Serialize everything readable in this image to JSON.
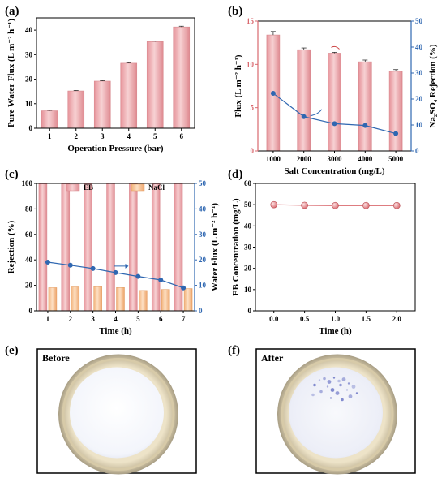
{
  "chart_data": [
    {
      "id": "a",
      "panel_label": "(a)",
      "type": "bar",
      "categories": [
        "1",
        "2",
        "3",
        "4",
        "5",
        "6"
      ],
      "values": [
        7.1,
        15.2,
        19.2,
        26.5,
        35.3,
        41.3
      ],
      "errors": [
        0.2,
        0.2,
        0.2,
        0.2,
        0.2,
        0.3
      ],
      "xlabel": "Operation Pressure (bar)",
      "ylabel": "Pure Water Flux (L m⁻² h⁻¹)",
      "ylim": [
        0,
        45
      ],
      "yticks": [
        0,
        10,
        20,
        30,
        40
      ],
      "bar_color": "#e8a0a5"
    },
    {
      "id": "b",
      "panel_label": "(b)",
      "type": "bar+line",
      "categories": [
        "1000",
        "2000",
        "3000",
        "4000",
        "5000"
      ],
      "series": [
        {
          "values": [
            13.4,
            11.7,
            11.3,
            10.3,
            9.2
          ],
          "errors": [
            0.4,
            0.2,
            0.1,
            0.2,
            0.2
          ],
          "axis": "left",
          "kind": "bar",
          "color": "#e8a0a5"
        },
        {
          "values": [
            22.2,
            13.2,
            10.5,
            9.8,
            6.7
          ],
          "axis": "right",
          "kind": "line",
          "color": "#2f67b1"
        }
      ],
      "xlabel": "Salt Concentration (mg/L)",
      "ylabel_left": "Flux (L m⁻² h⁻¹)",
      "ylabel_right": "Na₂SO₄ Rejection (%)",
      "ylim_left": [
        0,
        15
      ],
      "yticks_left": [
        0,
        5,
        10,
        15
      ],
      "ylim_right": [
        0,
        50
      ],
      "yticks_right": [
        0,
        10,
        20,
        30,
        40,
        50
      ]
    },
    {
      "id": "c",
      "panel_label": "(c)",
      "type": "grouped-bar+line",
      "categories": [
        "1",
        "2",
        "3",
        "4",
        "5",
        "6",
        "7"
      ],
      "series": [
        {
          "name": "EB",
          "values": [
            99.6,
            99.6,
            99.6,
            99.8,
            99.6,
            99.6,
            99.7
          ],
          "axis": "left",
          "kind": "bar",
          "color": "#e8a0a5"
        },
        {
          "name": "NaCl",
          "values": [
            18.2,
            18.8,
            19.0,
            18.3,
            16.0,
            16.8,
            17.5
          ],
          "axis": "left",
          "kind": "bar",
          "color": "#f5c49a"
        },
        {
          "values": [
            19.1,
            17.9,
            16.6,
            15.0,
            13.5,
            12.1,
            9.0
          ],
          "axis": "right",
          "kind": "line",
          "color": "#2f67b1"
        }
      ],
      "xlabel": "Time (h)",
      "ylabel_left": "Rejection (%)",
      "ylabel_right": "Water Flux (L m⁻² h⁻¹)",
      "ylim_left": [
        0,
        100
      ],
      "yticks_left": [
        0,
        20,
        40,
        60,
        80,
        100
      ],
      "ylim_right": [
        0,
        50
      ],
      "yticks_right": [
        0,
        10,
        20,
        30,
        40,
        50
      ],
      "legend_placement": "top"
    },
    {
      "id": "d",
      "panel_label": "(d)",
      "type": "line",
      "x": [
        0.0,
        0.5,
        1.0,
        1.5,
        2.0
      ],
      "values": [
        50.0,
        49.7,
        49.6,
        49.6,
        49.6
      ],
      "xlabel": "Time (h)",
      "ylabel": "EB Concentration (mg/L)",
      "xlim": [
        -0.3,
        2.3
      ],
      "xticks": [
        "0.0",
        "0.5",
        "1.0",
        "1.5",
        "2.0"
      ],
      "ylim": [
        0,
        60
      ],
      "yticks": [
        0,
        10,
        20,
        30,
        40,
        50,
        60
      ],
      "color": "#d9696f"
    }
  ],
  "photos": [
    {
      "panel_label": "(e)",
      "caption": "Before",
      "stain_color": "#6a74c6"
    },
    {
      "panel_label": "(f)",
      "caption": "After",
      "stain_color": "#5560bd"
    }
  ]
}
